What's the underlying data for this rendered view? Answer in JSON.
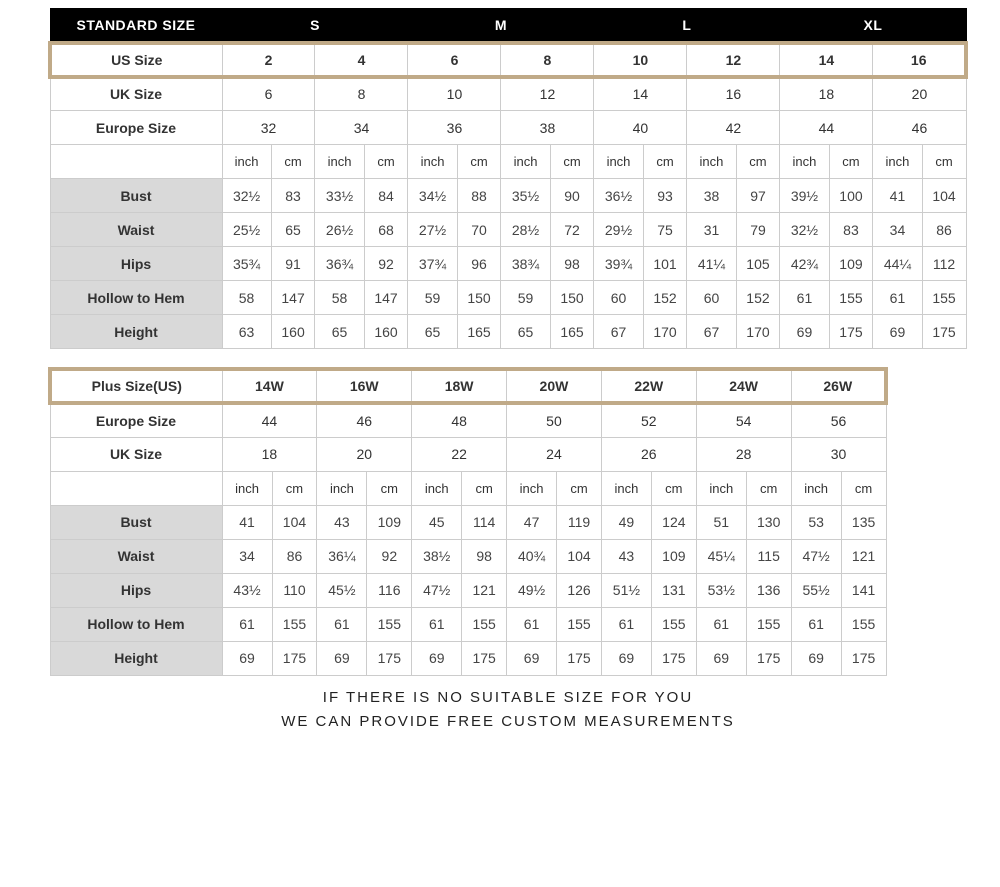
{
  "colors": {
    "header_bg": "#000000",
    "header_text": "#ffffff",
    "highlight_border": "#c0aa88",
    "meas_label_bg": "#d9d9d9",
    "cell_border": "#cccccc",
    "text": "#333333"
  },
  "table1": {
    "header_label": "STANDARD SIZE",
    "header_sizes": [
      "S",
      "M",
      "L",
      "XL"
    ],
    "us_label": "US Size",
    "us": [
      "2",
      "4",
      "6",
      "8",
      "10",
      "12",
      "14",
      "16"
    ],
    "uk_label": "UK Size",
    "uk": [
      "6",
      "8",
      "10",
      "12",
      "14",
      "16",
      "18",
      "20"
    ],
    "eu_label": "Europe Size",
    "eu": [
      "32",
      "34",
      "36",
      "38",
      "40",
      "42",
      "44",
      "46"
    ],
    "unit_inch": "inch",
    "unit_cm": "cm",
    "rows": [
      {
        "label": "Bust",
        "v": [
          "32½",
          "83",
          "33½",
          "84",
          "34½",
          "88",
          "35½",
          "90",
          "36½",
          "93",
          "38",
          "97",
          "39½",
          "100",
          "41",
          "104"
        ]
      },
      {
        "label": "Waist",
        "v": [
          "25½",
          "65",
          "26½",
          "68",
          "27½",
          "70",
          "28½",
          "72",
          "29½",
          "75",
          "31",
          "79",
          "32½",
          "83",
          "34",
          "86"
        ]
      },
      {
        "label": "Hips",
        "v": [
          "35¾",
          "91",
          "36¾",
          "92",
          "37¾",
          "96",
          "38¾",
          "98",
          "39¾",
          "101",
          "41¼",
          "105",
          "42¾",
          "109",
          "44¼",
          "112"
        ]
      },
      {
        "label": "Hollow to Hem",
        "v": [
          "58",
          "147",
          "58",
          "147",
          "59",
          "150",
          "59",
          "150",
          "60",
          "152",
          "60",
          "152",
          "61",
          "155",
          "61",
          "155"
        ]
      },
      {
        "label": "Height",
        "v": [
          "63",
          "160",
          "65",
          "160",
          "65",
          "165",
          "65",
          "165",
          "67",
          "170",
          "67",
          "170",
          "69",
          "175",
          "69",
          "175"
        ]
      }
    ]
  },
  "table2": {
    "plus_label": "Plus Size(US)",
    "plus": [
      "14W",
      "16W",
      "18W",
      "20W",
      "22W",
      "24W",
      "26W"
    ],
    "eu_label": "Europe Size",
    "eu": [
      "44",
      "46",
      "48",
      "50",
      "52",
      "54",
      "56"
    ],
    "uk_label": "UK Size",
    "uk": [
      "18",
      "20",
      "22",
      "24",
      "26",
      "28",
      "30"
    ],
    "unit_inch": "inch",
    "unit_cm": "cm",
    "rows": [
      {
        "label": "Bust",
        "v": [
          "41",
          "104",
          "43",
          "109",
          "45",
          "114",
          "47",
          "119",
          "49",
          "124",
          "51",
          "130",
          "53",
          "135"
        ]
      },
      {
        "label": "Waist",
        "v": [
          "34",
          "86",
          "36¼",
          "92",
          "38½",
          "98",
          "40¾",
          "104",
          "43",
          "109",
          "45¼",
          "115",
          "47½",
          "121"
        ]
      },
      {
        "label": "Hips",
        "v": [
          "43½",
          "110",
          "45½",
          "116",
          "47½",
          "121",
          "49½",
          "126",
          "51½",
          "131",
          "53½",
          "136",
          "55½",
          "141"
        ]
      },
      {
        "label": "Hollow to Hem",
        "v": [
          "61",
          "155",
          "61",
          "155",
          "61",
          "155",
          "61",
          "155",
          "61",
          "155",
          "61",
          "155",
          "61",
          "155"
        ]
      },
      {
        "label": "Height",
        "v": [
          "69",
          "175",
          "69",
          "175",
          "69",
          "175",
          "69",
          "175",
          "69",
          "175",
          "69",
          "175",
          "69",
          "175"
        ]
      }
    ]
  },
  "footer": {
    "line1": "IF THERE IS NO SUITABLE SIZE FOR YOU",
    "line2": "WE CAN PROVIDE FREE CUSTOM MEASUREMENTS"
  }
}
